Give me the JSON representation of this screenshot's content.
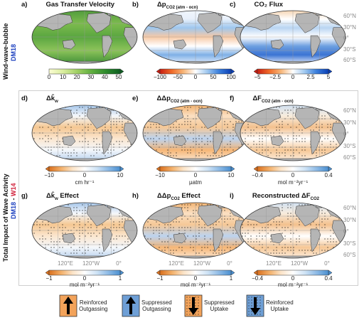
{
  "side_labels": {
    "top_row": "Wind-wave-bubble",
    "top_model": "DM18",
    "bottom_rows": "Total Impact of Wave Activity",
    "bottom_model_a": "DM18",
    "bottom_model_sep": " - ",
    "bottom_model_b": "W14"
  },
  "panels": [
    {
      "letter": "a)",
      "title": "Gas Transfer Velocity",
      "sub": ""
    },
    {
      "letter": "b)",
      "title": "Δp",
      "sub": "CO2 (atm - ocn)"
    },
    {
      "letter": "c)",
      "title": "CO₂ Flux",
      "sub": ""
    },
    {
      "letter": "d)",
      "title": "Δk̂",
      "sub": "w"
    },
    {
      "letter": "e)",
      "title": "ΔΔp",
      "sub": "CO2 (atm - ocn)"
    },
    {
      "letter": "f)",
      "title": "ΔF",
      "sub": "CO2 (atm - ocn)"
    },
    {
      "letter": "g)",
      "title": "Δk̂",
      "sub": "w",
      "suffix": " Effect"
    },
    {
      "letter": "h)",
      "title": "ΔΔp",
      "sub": "CO2",
      "suffix": " Effect"
    },
    {
      "letter": "i)",
      "title": "Reconstructed ΔF",
      "sub": "CO2"
    }
  ],
  "lat_labels": [
    "60°N",
    "30°N",
    "0°",
    "30°S",
    "60°S"
  ],
  "lon_labels": [
    "120°E",
    "120°W",
    "0°"
  ],
  "colorbars": [
    {
      "ticks": [
        "0",
        "10",
        "20",
        "30",
        "40",
        "50"
      ],
      "unit": ""
    },
    {
      "ticks": [
        "−100",
        "−50",
        "0",
        "50",
        "100"
      ],
      "unit": ""
    },
    {
      "ticks": [
        "−5",
        "−2.5",
        "0",
        "2.5",
        "5"
      ],
      "unit": ""
    },
    {
      "ticks": [
        "−10",
        "0",
        "10"
      ],
      "unit": "cm hr⁻¹"
    },
    {
      "ticks": [
        "−10",
        "0",
        "10"
      ],
      "unit": "µatm"
    },
    {
      "ticks": [
        "−0.4",
        "0",
        "0.4"
      ],
      "unit": "mol m⁻²yr⁻¹"
    },
    {
      "ticks": [
        "−1",
        "0",
        "1"
      ],
      "unit": "mol m⁻²yr⁻¹"
    },
    {
      "ticks": [
        "−1",
        "0",
        "1"
      ],
      "unit": "mol m⁻²yr⁻¹"
    },
    {
      "ticks": [
        "−0.4",
        "0",
        "0.4"
      ],
      "unit": "mol m⁻²yr⁻¹"
    }
  ],
  "legend": [
    {
      "line1": "Reinforced",
      "line2": "Outgassing",
      "arrow": "up",
      "swatch": "#f3a35a"
    },
    {
      "line1": "Suppressed",
      "line2": "Outgassing",
      "arrow": "up",
      "swatch": "#6e9fd6"
    },
    {
      "line1": "Suppressed",
      "line2": "Uptake",
      "arrow": "down",
      "swatch": "#f3a35a"
    },
    {
      "line1": "Reinforced",
      "line2": "Uptake",
      "arrow": "down",
      "swatch": "#6e9fd6"
    }
  ],
  "colors": {
    "land": "#b5b5b5",
    "blue_label": "#1b3fbf",
    "red_label": "#d1203a",
    "frame": "#cfcfcf"
  }
}
